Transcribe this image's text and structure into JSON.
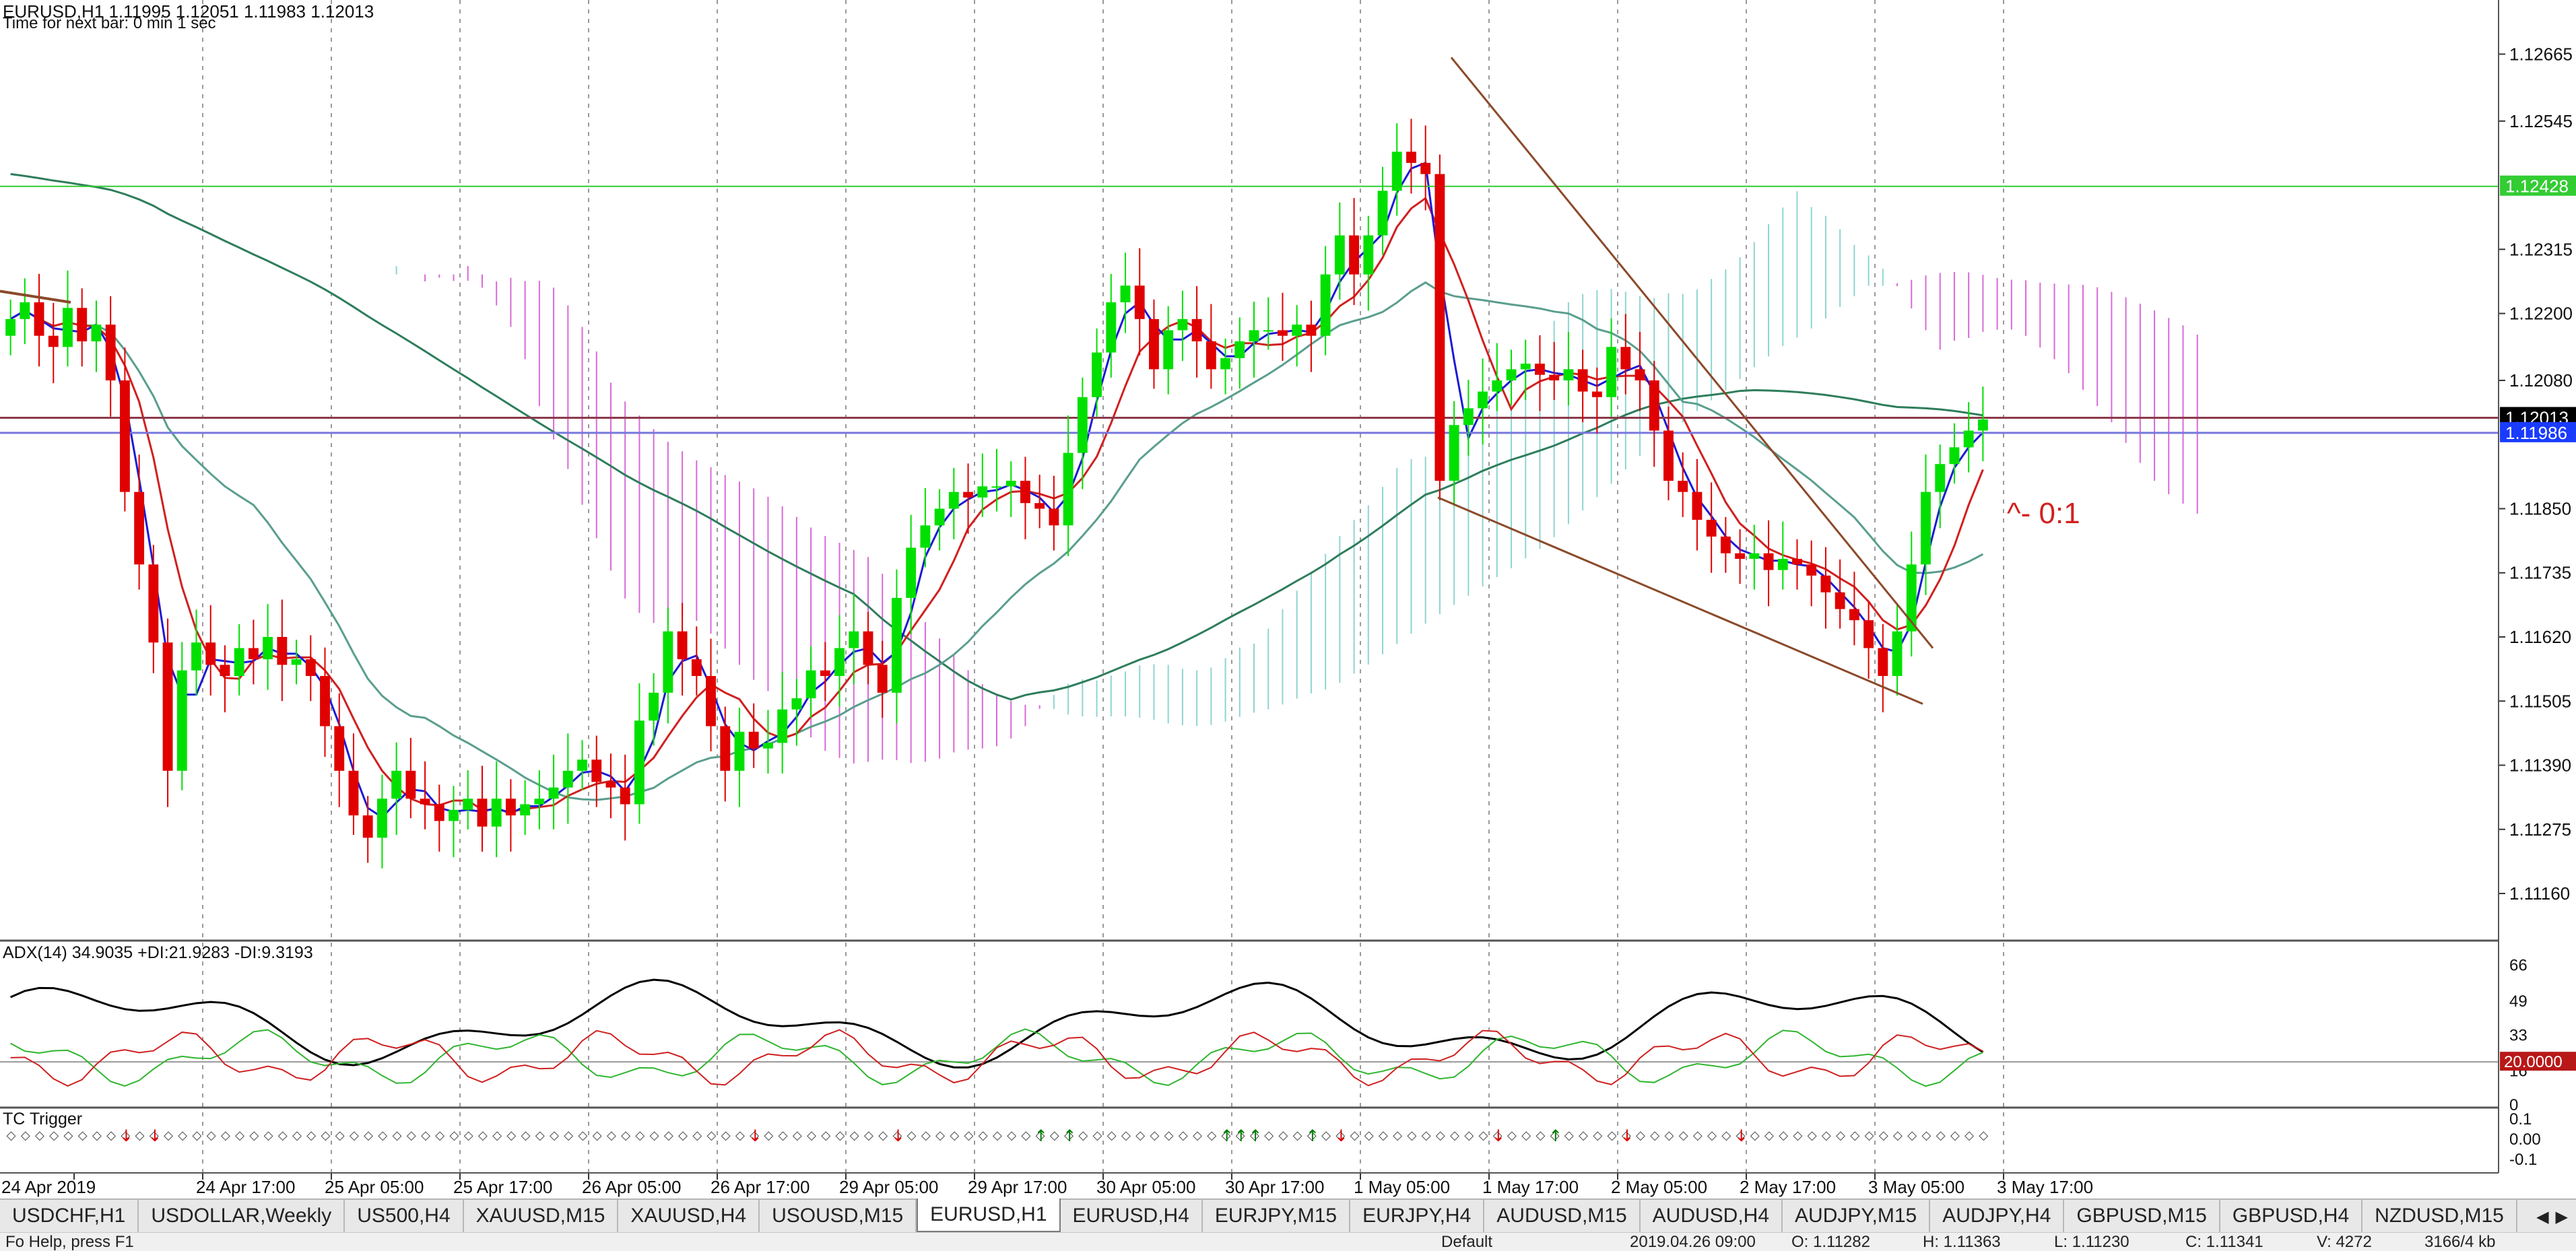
{
  "window": {
    "chart_header": "EURUSD,H1  1.11995 1.12051 1.11983 1.12013",
    "next_bar": "Time for next bar: 0 min 1 sec"
  },
  "price_scale": {
    "labels": [
      "1.12665",
      "1.12545",
      "1.12428",
      "1.12315",
      "1.12200",
      "1.12080",
      "1.12013",
      "1.11986",
      "1.11850",
      "1.11735",
      "1.11620",
      "1.11505",
      "1.11390",
      "1.11275",
      "1.11160"
    ],
    "current_price": "1.12013",
    "bid_line": "1.11986",
    "level_line": "1.12428"
  },
  "annotation": {
    "text": "^- 0:1",
    "color": "#d42020"
  },
  "time_axis": {
    "labels": [
      "24 Apr 2019",
      "24 Apr 17:00",
      "25 Apr 05:00",
      "25 Apr 17:00",
      "26 Apr 05:00",
      "26 Apr 17:00",
      "29 Apr 05:00",
      "29 Apr 17:00",
      "30 Apr 05:00",
      "30 Apr 17:00",
      "1 May 05:00",
      "1 May 17:00",
      "2 May 05:00",
      "2 May 17:00",
      "3 May 05:00",
      "3 May 17:00"
    ]
  },
  "adx_panel": {
    "header": "ADX(14) 34.9035 +DI:21.9283 -DI:9.3193",
    "scale": [
      "66",
      "49",
      "33",
      "16",
      "0"
    ],
    "level": "20.0000"
  },
  "tc_panel": {
    "header": "TC Trigger",
    "scale": [
      "0.1",
      "0.00",
      "-0.1"
    ]
  },
  "tabs": [
    {
      "label": "USDCHF,H1",
      "active": false
    },
    {
      "label": "USDOLLAR,Weekly",
      "active": false
    },
    {
      "label": "US500,H4",
      "active": false
    },
    {
      "label": "XAUUSD,M15",
      "active": false
    },
    {
      "label": "XAUUSD,H4",
      "active": false
    },
    {
      "label": "USOUSD,M15",
      "active": false
    },
    {
      "label": "EURUSD,H1",
      "active": true
    },
    {
      "label": "EURUSD,H4",
      "active": false
    },
    {
      "label": "EURJPY,M15",
      "active": false
    },
    {
      "label": "EURJPY,H4",
      "active": false
    },
    {
      "label": "AUDUSD,M15",
      "active": false
    },
    {
      "label": "AUDUSD,H4",
      "active": false
    },
    {
      "label": "AUDJPY,M15",
      "active": false
    },
    {
      "label": "AUDJPY,H4",
      "active": false
    },
    {
      "label": "GBPUSD,M15",
      "active": false
    },
    {
      "label": "GBPUSD,H4",
      "active": false
    },
    {
      "label": "NZDUSD,M15",
      "active": false
    }
  ],
  "tab_scroll": {
    "left": "◀",
    "right": "▶"
  },
  "status": {
    "left": "Fo   Help, press F1",
    "profile": "Default",
    "datetime": "2019.04.26 09:00",
    "open": "O: 1.11282",
    "high": "H: 1.11363",
    "low": "L: 1.11230",
    "close": "C: 1.11341",
    "volume": "V: 4272",
    "traffic": "3166/4 kb"
  },
  "colors": {
    "bull": "#00e000",
    "bear": "#e00000",
    "tenkan": "#1b1bd6",
    "kijun": "#d02020",
    "sma_slow": "#2e7d5b",
    "sma_mid": "#5a9e8e",
    "cloud_bear": "#d86ad8",
    "cloud_bull": "#8fd4d0",
    "trendline": "#8b4a2a",
    "level_line": "#33cc33",
    "current_line": "#8b3a4a",
    "bid_line": "#7777dd"
  },
  "chart_data": {
    "type": "candlestick",
    "symbol": "EURUSD",
    "timeframe": "H1",
    "ylim": [
      1.1109,
      1.1275
    ],
    "last": {
      "open": 1.11995,
      "high": 1.12051,
      "low": 1.11983,
      "close": 1.12013
    },
    "ohlc_note": "hourly closes approximated from visible candles",
    "closes": [
      1.1219,
      1.1222,
      1.1216,
      1.1214,
      1.1221,
      1.1215,
      1.1218,
      1.1208,
      1.1188,
      1.1175,
      1.1161,
      1.1138,
      1.1156,
      1.1161,
      1.1157,
      1.1155,
      1.116,
      1.1158,
      1.1162,
      1.1157,
      1.1158,
      1.1155,
      1.1146,
      1.1138,
      1.113,
      1.1126,
      1.1133,
      1.1138,
      1.1133,
      1.1132,
      1.1129,
      1.1131,
      1.1133,
      1.1128,
      1.1133,
      1.113,
      1.1132,
      1.1133,
      1.1135,
      1.1138,
      1.114,
      1.1136,
      1.1135,
      1.1132,
      1.1147,
      1.1152,
      1.1163,
      1.1158,
      1.1155,
      1.1146,
      1.1138,
      1.1145,
      1.1142,
      1.1143,
      1.1149,
      1.1151,
      1.1156,
      1.1155,
      1.116,
      1.1163,
      1.1157,
      1.1152,
      1.1169,
      1.1178,
      1.1182,
      1.1185,
      1.1188,
      1.1187,
      1.1189,
      1.1189,
      1.119,
      1.1186,
      1.1185,
      1.1182,
      1.1195,
      1.1205,
      1.1213,
      1.1222,
      1.1225,
      1.1219,
      1.121,
      1.1217,
      1.1219,
      1.1215,
      1.121,
      1.1212,
      1.1215,
      1.1217,
      1.1217,
      1.1216,
      1.1218,
      1.1216,
      1.1227,
      1.1234,
      1.1227,
      1.1234,
      1.1242,
      1.1249,
      1.1247,
      1.1245,
      1.119,
      1.12,
      1.1203,
      1.1206,
      1.1208,
      1.121,
      1.1211,
      1.1209,
      1.1208,
      1.121,
      1.1206,
      1.1205,
      1.1214,
      1.121,
      1.1208,
      1.1199,
      1.119,
      1.1188,
      1.1183,
      1.118,
      1.1177,
      1.1176,
      1.1177,
      1.1174,
      1.1176,
      1.1175,
      1.1173,
      1.117,
      1.1167,
      1.1165,
      1.116,
      1.1155,
      1.1163,
      1.1175,
      1.1188,
      1.1193,
      1.1196,
      1.1199,
      1.1201
    ],
    "indicators": {
      "tenkan_sen": "blue line",
      "kijun_sen": "red line",
      "moving_averages": [
        "dark green slow MA",
        "teal medium MA"
      ],
      "ichimoku_cloud": "vertical hatched cloud, magenta (bearish) / cyan (bullish)",
      "trendlines": "descending wedge drawn from 1 May 17:00 high to 3 May lows"
    }
  }
}
